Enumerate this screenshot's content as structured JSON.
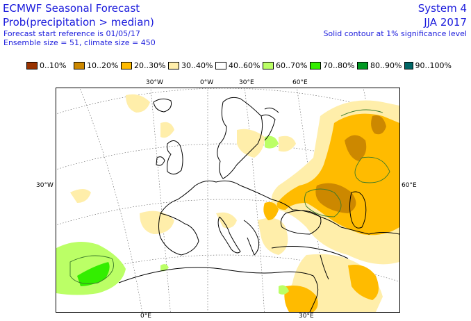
{
  "header": {
    "title": "ECMWF Seasonal Forecast",
    "subtitle": "Prob(precipitation > median)",
    "forecast_start": "Forecast start reference is 01/05/17",
    "ensemble": "Ensemble size = 51, climate size = 450",
    "system": "System 4",
    "season": "JJA 2017",
    "contour_note": "Solid contour at 1% significance level"
  },
  "legend": [
    {
      "label": "0..10%",
      "color": "#993300"
    },
    {
      "label": "10..20%",
      "color": "#cc8800"
    },
    {
      "label": "20..30%",
      "color": "#ffbb00"
    },
    {
      "label": "30..40%",
      "color": "#ffeeaa"
    },
    {
      "label": "40..60%",
      "color": "#ffffff"
    },
    {
      "label": "60..70%",
      "color": "#bbff66"
    },
    {
      "label": "70..80%",
      "color": "#33ee00"
    },
    {
      "label": "80..90%",
      "color": "#009922"
    },
    {
      "label": "90..100%",
      "color": "#006666"
    }
  ],
  "axes": {
    "top": [
      "30°W",
      "0°W",
      "30°E",
      "60°E"
    ],
    "bottom": [
      "0°E",
      "30°E"
    ],
    "left": "30°W",
    "right": "60°E"
  }
}
